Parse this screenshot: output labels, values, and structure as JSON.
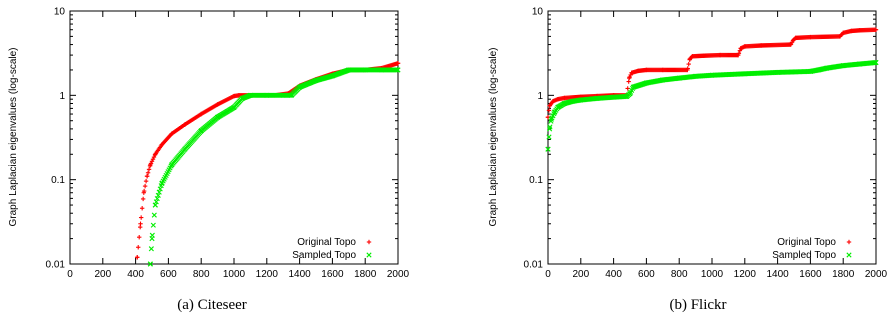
{
  "colors": {
    "original": "#ff0000",
    "sampled": "#00ee00",
    "axis": "#000000"
  },
  "chart_data": [
    {
      "type": "scatter",
      "caption": "(a) Citeseer",
      "ylabel": "Graph Laplacian eigenvalues (log-scale)",
      "xlabel": "",
      "xlim": [
        0,
        2000
      ],
      "ylim": [
        0.01,
        10
      ],
      "yscale": "log",
      "x_ticks": [
        "0",
        "200",
        "400",
        "600",
        "800",
        "1000",
        "1200",
        "1400",
        "1600",
        "1800",
        "2000"
      ],
      "y_ticks": [
        "0.01",
        "0.1",
        "1",
        "10"
      ],
      "legend_position": "bottom-right",
      "series": [
        {
          "name": "Original Topo",
          "marker": "+",
          "x": [
            410,
            430,
            450,
            470,
            490,
            520,
            560,
            620,
            700,
            800,
            900,
            1000,
            1030,
            1100,
            1250,
            1330,
            1400,
            1500,
            1600,
            1700,
            1800,
            1900,
            2000
          ],
          "y": [
            0.012,
            0.03,
            0.07,
            0.11,
            0.15,
            0.2,
            0.26,
            0.35,
            0.45,
            0.6,
            0.78,
            0.98,
            1.0,
            1.0,
            1.0,
            1.05,
            1.3,
            1.55,
            1.8,
            2.0,
            2.0,
            2.1,
            2.4
          ]
        },
        {
          "name": "Sampled Topo",
          "marker": "x",
          "x": [
            490,
            500,
            520,
            560,
            620,
            700,
            800,
            900,
            1000,
            1050,
            1100,
            1200,
            1300,
            1350,
            1400,
            1500,
            1600,
            1700,
            1800,
            1900,
            2000
          ],
          "y": [
            0.01,
            0.02,
            0.05,
            0.09,
            0.15,
            0.23,
            0.38,
            0.55,
            0.72,
            0.92,
            1.0,
            1.0,
            1.0,
            1.0,
            1.25,
            1.5,
            1.7,
            2.0,
            2.0,
            2.0,
            2.0
          ]
        }
      ]
    },
    {
      "type": "scatter",
      "caption": "(b) Flickr",
      "ylabel": "Graph Laplacian eigenvalues (log-scale)",
      "xlabel": "",
      "xlim": [
        0,
        2000
      ],
      "ylim": [
        0.01,
        10
      ],
      "yscale": "log",
      "x_ticks": [
        "0",
        "200",
        "400",
        "600",
        "800",
        "1000",
        "1200",
        "1400",
        "1600",
        "1800",
        "2000"
      ],
      "y_ticks": [
        "0.01",
        "0.1",
        "1",
        "10"
      ],
      "legend_position": "bottom-right",
      "series": [
        {
          "name": "Original Topo",
          "marker": "+",
          "x": [
            0,
            10,
            30,
            60,
            100,
            200,
            300,
            400,
            480,
            495,
            510,
            550,
            600,
            700,
            850,
            865,
            880,
            950,
            1050,
            1160,
            1175,
            1200,
            1300,
            1480,
            1495,
            1510,
            1600,
            1780,
            1800,
            1850,
            1900,
            2000
          ],
          "y": [
            0.55,
            0.75,
            0.85,
            0.9,
            0.93,
            0.96,
            0.98,
            1.0,
            1.0,
            1.6,
            1.85,
            1.95,
            2.0,
            2.0,
            2.0,
            2.7,
            2.9,
            2.95,
            3.0,
            3.0,
            3.6,
            3.8,
            3.9,
            4.0,
            4.5,
            4.8,
            4.9,
            5.0,
            5.5,
            5.8,
            5.9,
            6.0
          ]
        },
        {
          "name": "Sampled Topo",
          "marker": "x",
          "x": [
            0,
            10,
            20,
            40,
            60,
            100,
            150,
            200,
            300,
            400,
            480,
            500,
            520,
            600,
            700,
            800,
            900,
            1000,
            1200,
            1400,
            1600,
            1650,
            1700,
            1800,
            1900,
            2000
          ],
          "y": [
            0.23,
            0.4,
            0.52,
            0.63,
            0.72,
            0.8,
            0.85,
            0.88,
            0.92,
            0.95,
            0.97,
            1.05,
            1.25,
            1.4,
            1.52,
            1.6,
            1.68,
            1.73,
            1.8,
            1.87,
            1.92,
            2.0,
            2.1,
            2.25,
            2.35,
            2.45
          ]
        }
      ]
    }
  ]
}
